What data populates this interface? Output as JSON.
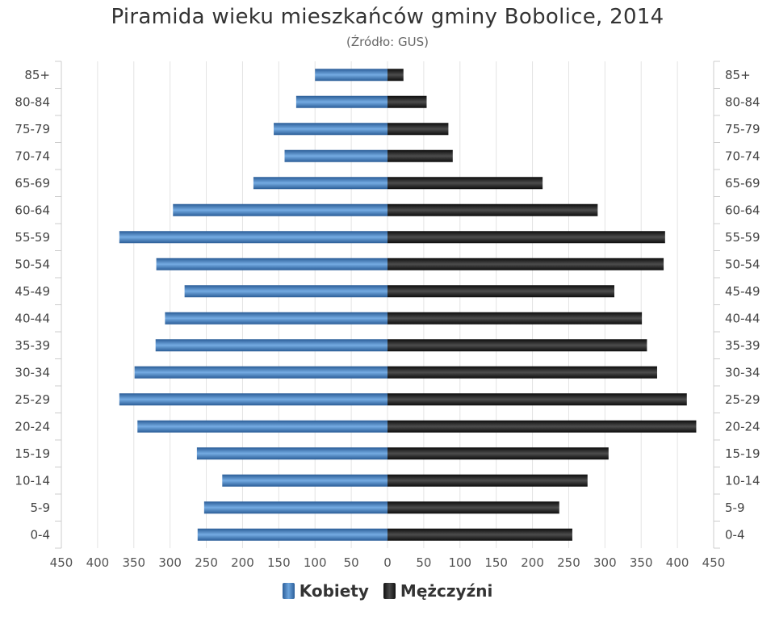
{
  "chart_data": {
    "type": "bar",
    "orientation": "horizontal-pyramid",
    "title": "Piramida wieku mieszkańców gminy Bobolice, 2014",
    "subtitle": "(Źródło: GUS)",
    "categories": [
      "85+",
      "80-84",
      "75-79",
      "70-74",
      "65-69",
      "60-64",
      "55-59",
      "50-54",
      "45-49",
      "40-44",
      "35-39",
      "30-34",
      "25-29",
      "20-24",
      "15-19",
      "10-14",
      "5-9",
      "0-4"
    ],
    "series": [
      {
        "name": "Kobiety",
        "color": "#3a78bd",
        "values": [
          100,
          126,
          157,
          142,
          185,
          296,
          370,
          319,
          280,
          307,
          320,
          349,
          370,
          345,
          263,
          228,
          253,
          262
        ]
      },
      {
        "name": "Mężczyźni",
        "color": "#1a1a1a",
        "values": [
          22,
          54,
          84,
          90,
          214,
          290,
          383,
          381,
          313,
          351,
          358,
          372,
          413,
          426,
          305,
          276,
          237,
          255
        ]
      }
    ],
    "xlim": [
      -450,
      450
    ],
    "xticks": [
      "450",
      "400",
      "350",
      "300",
      "250",
      "200",
      "150",
      "100",
      "50",
      "0",
      "50",
      "100",
      "150",
      "200",
      "250",
      "300",
      "350",
      "400",
      "450"
    ],
    "grid": true,
    "legend": "bottom-center"
  }
}
